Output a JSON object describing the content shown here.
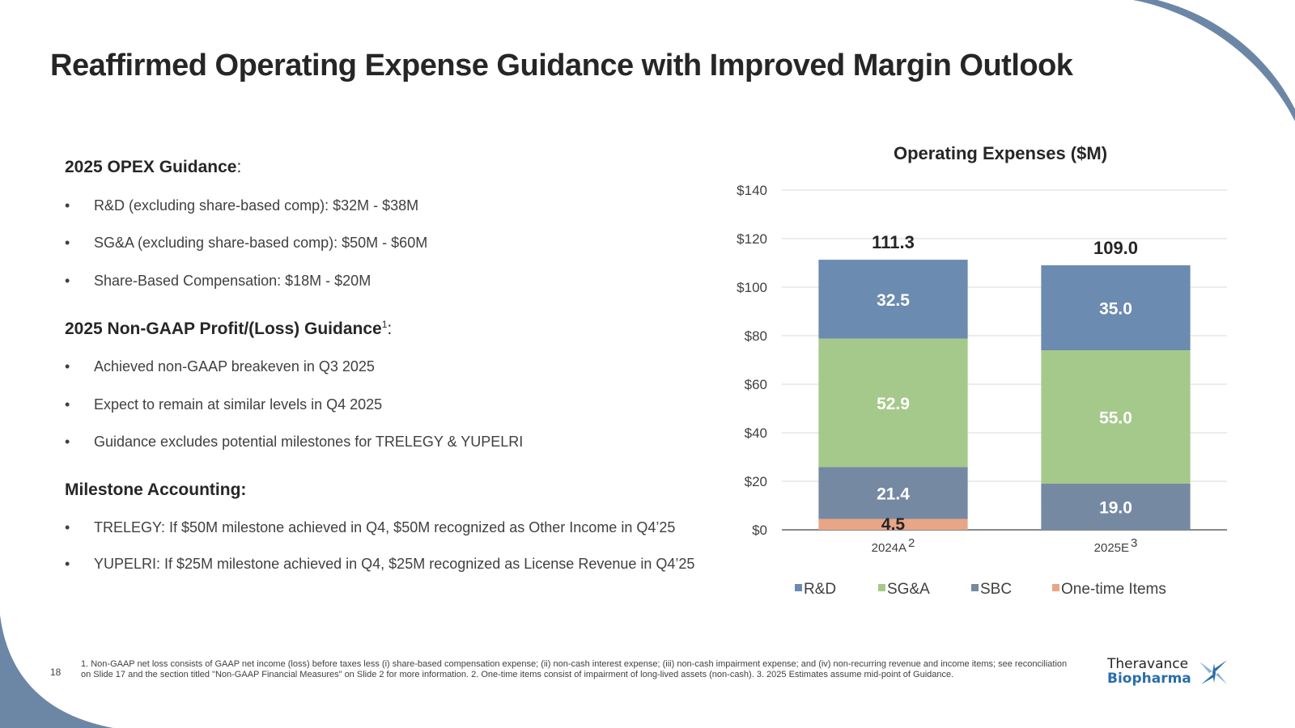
{
  "slide": {
    "title": "Reaffirmed Operating Expense Guidance with Improved Margin Outlook",
    "page_number": "18",
    "accent_color": "#6c86a6"
  },
  "sections": [
    {
      "heading": "2025 OPEX Guidance",
      "heading_suffix": ":",
      "superscript": "",
      "bullets": [
        "R&D (excluding share-based comp): $32M - $38M",
        "SG&A (excluding share-based comp): $50M - $60M",
        "Share-Based Compensation: $18M - $20M"
      ]
    },
    {
      "heading": "2025 Non-GAAP Profit/(Loss) Guidance",
      "heading_suffix": ":",
      "superscript": "1",
      "bullets": [
        "Achieved non-GAAP breakeven in Q3 2025",
        "Expect to remain at similar levels in Q4 2025",
        "Guidance excludes potential milestones for TRELEGY & YUPELRI"
      ]
    },
    {
      "heading": "Milestone Accounting:",
      "heading_suffix": "",
      "superscript": "",
      "bullets": [
        "TRELEGY: If $50M milestone achieved in Q4, $50M recognized as Other Income in Q4’25",
        "YUPELRI: If $25M milestone achieved in Q4, $25M recognized as License Revenue in Q4’25"
      ]
    }
  ],
  "bullet_glyph": "•",
  "footnote": "1. Non-GAAP net loss consists of GAAP net income (loss) before taxes less (i) share-based compensation expense; (ii) non-cash interest expense; (iii) non-cash impairment expense; and (iv) non-recurring revenue and income items; see reconciliation on Slide 17 and the section titled \"Non-GAAP Financial Measures\" on Slide 2 for more information. 2. One-time items consist of impairment of long-lived assets (non-cash). 3. 2025 Estimates assume mid-point of Guidance.",
  "logo": {
    "line1": "Theravance",
    "line2": "Biopharma",
    "icon": "star-burst-logo-icon"
  },
  "chart_data": {
    "type": "bar",
    "stacked": true,
    "title": "Operating Expenses ($M)",
    "xlabel": "",
    "ylabel": "",
    "categories": [
      "2024A",
      "2025E"
    ],
    "category_superscripts": [
      "2",
      "3"
    ],
    "ylim": [
      0,
      140
    ],
    "yticks": [
      0,
      20,
      40,
      60,
      80,
      100,
      120,
      140
    ],
    "ytick_labels": [
      "$0",
      "$20",
      "$40",
      "$60",
      "$80",
      "$100",
      "$120",
      "$140"
    ],
    "grid": true,
    "legend_position": "bottom",
    "series": [
      {
        "name": "One-time Items",
        "color": "#e8a687",
        "values": [
          4.5,
          0
        ],
        "labels": [
          "4.5",
          ""
        ],
        "label_color": "#262626"
      },
      {
        "name": "SBC",
        "color": "#7689a3",
        "values": [
          21.4,
          19.0
        ],
        "labels": [
          "21.4",
          "19.0"
        ],
        "label_color": "#ffffff"
      },
      {
        "name": "SG&A",
        "color": "#a5c98a",
        "values": [
          52.9,
          55.0
        ],
        "labels": [
          "52.9",
          "55.0"
        ],
        "label_color": "#ffffff"
      },
      {
        "name": "R&D",
        "color": "#6b8bb0",
        "values": [
          32.5,
          35.0
        ],
        "labels": [
          "32.5",
          "35.0"
        ],
        "label_color": "#ffffff"
      }
    ],
    "legend_order": [
      "R&D",
      "SG&A",
      "SBC",
      "One-time Items"
    ],
    "totals": [
      111.3,
      109.0
    ],
    "total_labels": [
      "111.3",
      "109.0"
    ]
  }
}
